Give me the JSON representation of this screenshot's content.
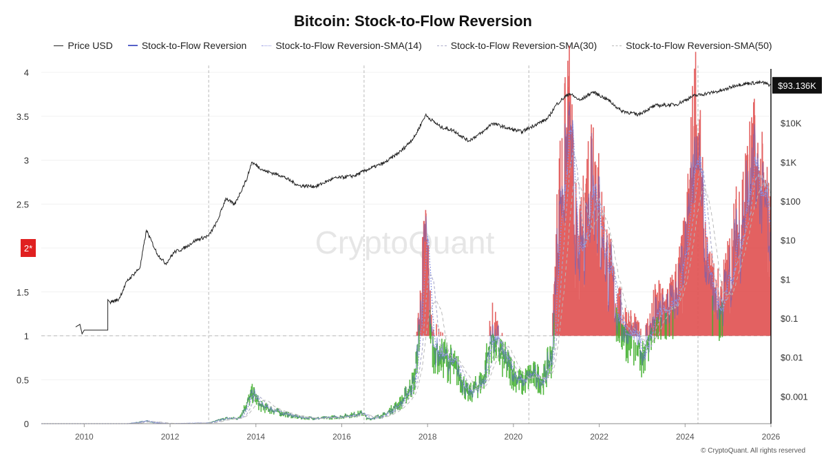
{
  "chart_data": {
    "type": "line",
    "title": "Bitcoin: Stock-to-Flow Reversion",
    "legend": [
      {
        "name": "Price USD",
        "color": "#222222",
        "style": "solid"
      },
      {
        "name": "Stock-to-Flow Reversion",
        "color": "#5560c8",
        "style": "solid"
      },
      {
        "name": "Stock-to-Flow Reversion-SMA(14)",
        "color": "#8a8fe0",
        "style": "dotted"
      },
      {
        "name": "Stock-to-Flow Reversion-SMA(30)",
        "color": "#a8a8c8",
        "style": "dashed"
      },
      {
        "name": "Stock-to-Flow Reversion-SMA(50)",
        "color": "#b8b8b8",
        "style": "dashed"
      }
    ],
    "x_ticks": [
      "2010",
      "2012",
      "2014",
      "2016",
      "2018",
      "2020",
      "2022",
      "2024",
      "2026"
    ],
    "xlim": [
      2009.0,
      2026.0
    ],
    "left_axis": {
      "ticks": [
        "0",
        "0.5",
        "1",
        "1.5",
        "2",
        "2.5",
        "3",
        "3.5",
        "4"
      ],
      "ylim": [
        0,
        4
      ]
    },
    "right_axis": {
      "scale": "log",
      "ticks": [
        "$0.001",
        "$0.01",
        "$0.1",
        "$1",
        "$10",
        "$100",
        "$1K",
        "$10K"
      ],
      "tick_values": [
        0.001,
        0.01,
        0.1,
        1,
        10,
        100,
        1000,
        10000
      ],
      "ylim": [
        0.0002,
        200000
      ]
    },
    "threshold": {
      "value": 1,
      "label": "1"
    },
    "marker_label": "2*",
    "halving_dates": [
      2012.9,
      2016.52,
      2020.36,
      2024.3
    ],
    "current_price_label": "$93.136K",
    "colors": {
      "above_threshold": "#e05050",
      "below_threshold": "#44b030",
      "price": "#222222",
      "sma": "#5560c8",
      "marker_bg": "#e02020",
      "price_label_bg": "#111111"
    },
    "price_series": {
      "x": [
        2009.8,
        2009.9,
        2009.95,
        2010.0,
        2010.55,
        2010.55,
        2010.6,
        2010.8,
        2011.0,
        2011.3,
        2011.45,
        2011.7,
        2011.9,
        2012.1,
        2012.3,
        2012.6,
        2012.9,
        2013.1,
        2013.3,
        2013.5,
        2013.8,
        2013.9,
        2014.2,
        2014.6,
        2015.0,
        2015.4,
        2015.8,
        2016.3,
        2016.6,
        2017.0,
        2017.4,
        2017.7,
        2017.95,
        2018.3,
        2018.6,
        2018.95,
        2019.3,
        2019.5,
        2019.9,
        2020.2,
        2020.5,
        2020.8,
        2021.0,
        2021.3,
        2021.55,
        2021.85,
        2022.2,
        2022.5,
        2022.9,
        2023.3,
        2023.8,
        2024.2,
        2024.6,
        2024.9,
        2025.2,
        2025.5,
        2025.8,
        2026.0
      ],
      "y": [
        0.06,
        0.07,
        0.04,
        0.05,
        0.05,
        0.3,
        0.26,
        0.3,
        0.9,
        2.0,
        18,
        4.5,
        2.5,
        5,
        6,
        10,
        13,
        30,
        120,
        80,
        400,
        1000,
        600,
        450,
        250,
        240,
        380,
        450,
        650,
        960,
        2000,
        4500,
        16000,
        8000,
        6500,
        3500,
        6000,
        10000,
        7200,
        6000,
        9000,
        13000,
        30000,
        58000,
        38000,
        63000,
        40000,
        21000,
        16500,
        28000,
        30000,
        50000,
        60000,
        70000,
        95000,
        105000,
        110000,
        93136
      ]
    },
    "s2f_series": {
      "x": [
        2009.0,
        2010.0,
        2011.0,
        2011.45,
        2011.6,
        2012.0,
        2012.9,
        2013.3,
        2013.6,
        2013.93,
        2014.1,
        2014.6,
        2015.0,
        2015.5,
        2016.0,
        2016.5,
        2016.6,
        2017.0,
        2017.4,
        2017.7,
        2017.96,
        2018.1,
        2018.4,
        2018.7,
        2018.95,
        2019.3,
        2019.5,
        2019.8,
        2020.2,
        2020.4,
        2020.7,
        2020.9,
        2021.05,
        2021.3,
        2021.5,
        2021.6,
        2021.85,
        2022.0,
        2022.3,
        2022.5,
        2022.75,
        2023.0,
        2023.3,
        2023.7,
        2024.0,
        2024.25,
        2024.5,
        2024.8,
        2025.0,
        2025.3,
        2025.6,
        2025.9,
        2026.0
      ],
      "y": [
        0.0,
        0.0,
        0.0,
        0.03,
        0.01,
        0.0,
        0.01,
        0.06,
        0.06,
        0.35,
        0.2,
        0.12,
        0.07,
        0.06,
        0.08,
        0.12,
        0.05,
        0.1,
        0.25,
        0.5,
        2.1,
        0.9,
        0.75,
        0.6,
        0.32,
        0.5,
        1.05,
        0.7,
        0.45,
        0.55,
        0.5,
        0.8,
        2.4,
        3.3,
        1.7,
        2.0,
        3.1,
        2.3,
        1.5,
        1.15,
        1.0,
        0.8,
        1.2,
        1.3,
        1.8,
        3.4,
        1.6,
        1.3,
        1.6,
        2.3,
        2.8,
        2.3,
        1.95
      ]
    }
  },
  "copyright": "© CryptoQuant. All rights reserved",
  "watermark": "CryptoQuant"
}
